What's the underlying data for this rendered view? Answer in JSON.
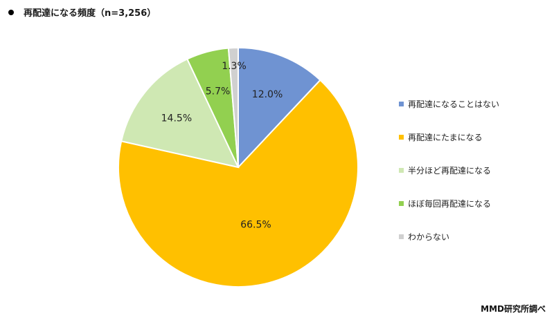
{
  "header": {
    "title": "再配達になる頻度（n=3,256）"
  },
  "footer": {
    "source": "MMD研究所調べ"
  },
  "chart_data": {
    "type": "pie",
    "title": "再配達になる頻度（n=3,256）",
    "slices": [
      {
        "label": "再配達になることはない",
        "value": 12.0,
        "display": "12.0%",
        "color": "#6f93d2"
      },
      {
        "label": "再配達にたまになる",
        "value": 66.5,
        "display": "66.5%",
        "color": "#ffc000"
      },
      {
        "label": "半分ほど再配達になる",
        "value": 14.5,
        "display": "14.5%",
        "color": "#cfe8b3"
      },
      {
        "label": "ほぼ毎回再配達になる",
        "value": 5.7,
        "display": "5.7%",
        "color": "#92d050"
      },
      {
        "label": "わからない",
        "value": 1.3,
        "display": "1.3%",
        "color": "#d0d0d0"
      }
    ],
    "legend_position": "right",
    "start_angle": "12 o'clock",
    "direction": "clockwise"
  }
}
